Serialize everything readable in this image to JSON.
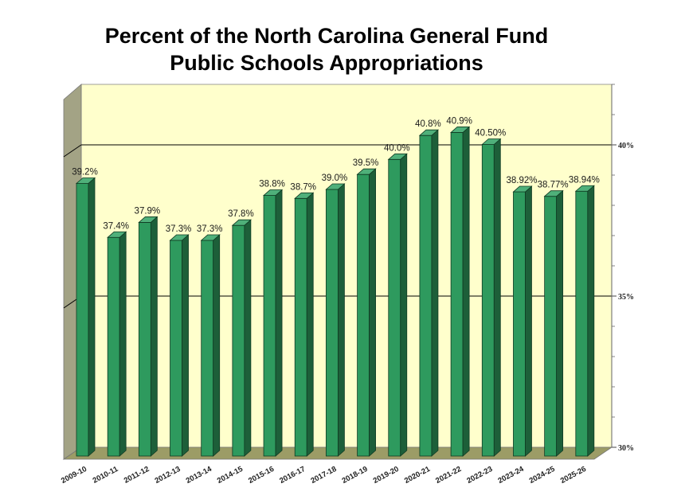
{
  "chart_data": {
    "type": "bar",
    "title": "Percent of the North Carolina General Fund Public Schools Appropriations",
    "title_lines": [
      "Percent of the North Carolina General Fund",
      "Public Schools Appropriations"
    ],
    "categories": [
      "2009-10",
      "2010-11",
      "2011-12",
      "2012-13",
      "2013-14",
      "2014-15",
      "2015-16",
      "2016-17",
      "2017-18",
      "2018-19",
      "2019-20",
      "2020-21",
      "2021-22",
      "2022-23",
      "2023-24",
      "2024-25",
      "2025-26"
    ],
    "values": [
      39.2,
      37.4,
      37.9,
      37.3,
      37.3,
      37.8,
      38.8,
      38.7,
      39.0,
      39.5,
      40.0,
      40.8,
      40.9,
      40.5,
      38.92,
      38.77,
      38.94
    ],
    "data_labels": [
      "39.2%",
      "37.4%",
      "37.9%",
      "37.3%",
      "37.3%",
      "37.8%",
      "38.8%",
      "38.7%",
      "39.0%",
      "39.5%",
      "40.0%",
      "40.8%",
      "40.9%",
      "40.50%",
      "38.92%",
      "38.77%",
      "38.94%"
    ],
    "ylim": [
      30,
      42
    ],
    "yticks": [
      30,
      35,
      40
    ],
    "ytick_labels": [
      "30%",
      "35%",
      "40%"
    ],
    "xlabel": "",
    "ylabel": "",
    "grid": true,
    "legend": "none",
    "colors": {
      "bar_front": "#2e9a5e",
      "bar_side": "#1d5f39",
      "bar_top": "#4fb07a",
      "plot_background": "#ffffcc",
      "floor": "#9c9c66",
      "left_wall": "#a3a385",
      "grid_line": "#000000"
    }
  }
}
